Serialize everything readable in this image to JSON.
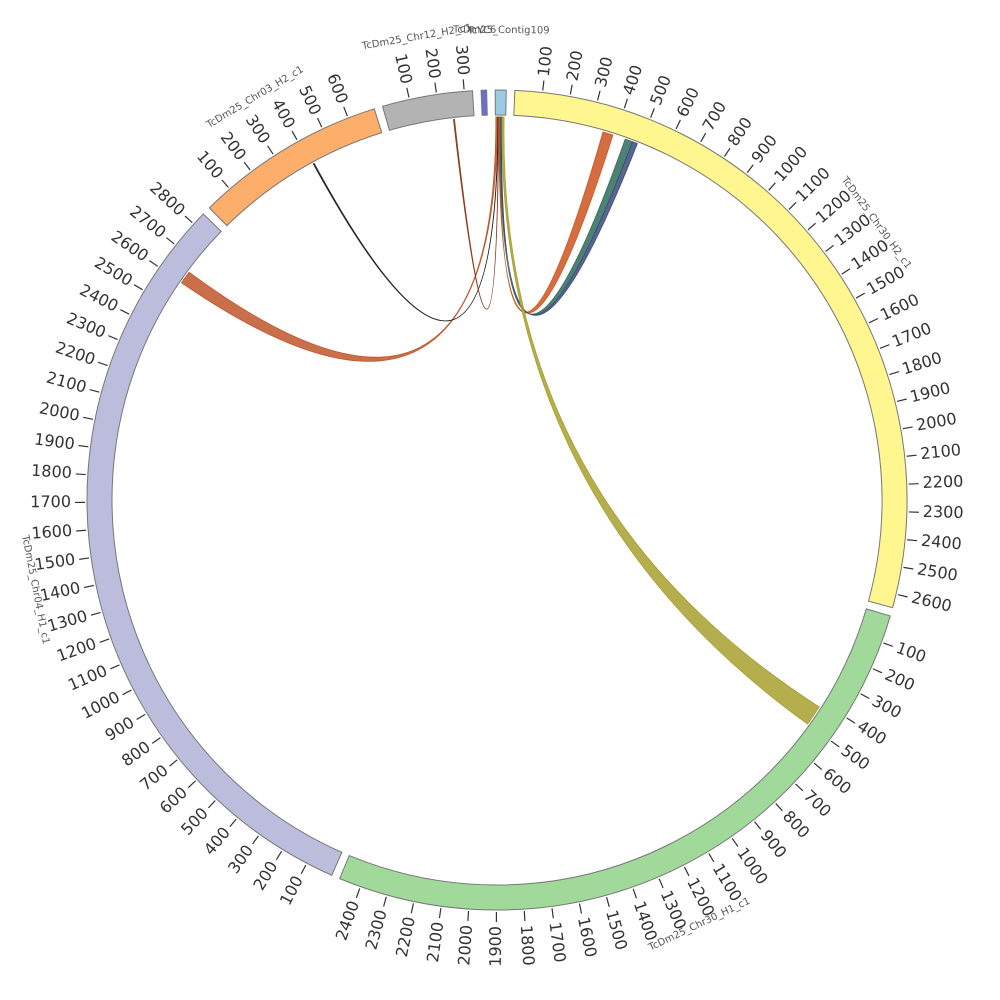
{
  "chart_data": {
    "type": "chord",
    "segments": [
      {
        "name": "TcDm25_Chr30_H2_c1",
        "length": 2650,
        "color": "#fff68f",
        "ticks": [
          100,
          200,
          300,
          400,
          500,
          600,
          700,
          800,
          900,
          1000,
          1100,
          1200,
          1300,
          1400,
          1500,
          1600,
          1700,
          1800,
          1900,
          2000,
          2100,
          2200,
          2300,
          2400,
          2500,
          2600
        ]
      },
      {
        "name": "TcDm25_Chr30_H1_c1",
        "length": 2480,
        "color": "#a1d99b",
        "ticks": [
          100,
          200,
          300,
          400,
          500,
          600,
          700,
          800,
          900,
          1000,
          1100,
          1200,
          1300,
          1400,
          1500,
          1600,
          1700,
          1800,
          1900,
          2000,
          2100,
          2200,
          2300,
          2400
        ]
      },
      {
        "name": "TcDm25_Chr04_H1_c1",
        "length": 2850,
        "color": "#bcbddc",
        "ticks": [
          100,
          200,
          300,
          400,
          500,
          600,
          700,
          800,
          900,
          1000,
          1100,
          1200,
          1300,
          1400,
          1500,
          1600,
          1700,
          1800,
          1900,
          2000,
          2100,
          2200,
          2300,
          2400,
          2500,
          2600,
          2700,
          2800
        ]
      },
      {
        "name": "TcDm25_Chr03_H2_c1",
        "length": 700,
        "color": "#fdae6b",
        "ticks": [
          100,
          200,
          300,
          400,
          500,
          600
        ]
      },
      {
        "name": "TcDm25_Chr12_H2_c1",
        "length": 330,
        "color": "#b3b3b3",
        "ticks": [
          100,
          200,
          300
        ]
      },
      {
        "name": "TcYC6",
        "length": 20,
        "color": "#6b6ecf",
        "ticks": []
      },
      {
        "name": "TcDm25_Contig109",
        "length": 40,
        "color": "#9ecae1",
        "ticks": []
      }
    ],
    "links": [
      {
        "from": [
          2,
          2600,
          2650
        ],
        "to": [
          6,
          2,
          8
        ],
        "color": "#c0562b"
      },
      {
        "from": [
          3,
          410,
          414
        ],
        "to": [
          6,
          10,
          11
        ],
        "color": "#222222"
      },
      {
        "from": [
          4,
          250,
          254
        ],
        "to": [
          6,
          12,
          13
        ],
        "color": "#8b3a1f"
      },
      {
        "from": [
          0,
          350,
          390
        ],
        "to": [
          6,
          14,
          18
        ],
        "color": "#cc5520"
      },
      {
        "from": [
          0,
          440,
          470
        ],
        "to": [
          6,
          19,
          22
        ],
        "color": "#2e6b5a"
      },
      {
        "from": [
          0,
          470,
          490
        ],
        "to": [
          6,
          23,
          25
        ],
        "color": "#3b4a7a"
      },
      {
        "from": [
          1,
          420,
          500
        ],
        "to": [
          6,
          26,
          34
        ],
        "color": "#a8a030"
      }
    ]
  }
}
